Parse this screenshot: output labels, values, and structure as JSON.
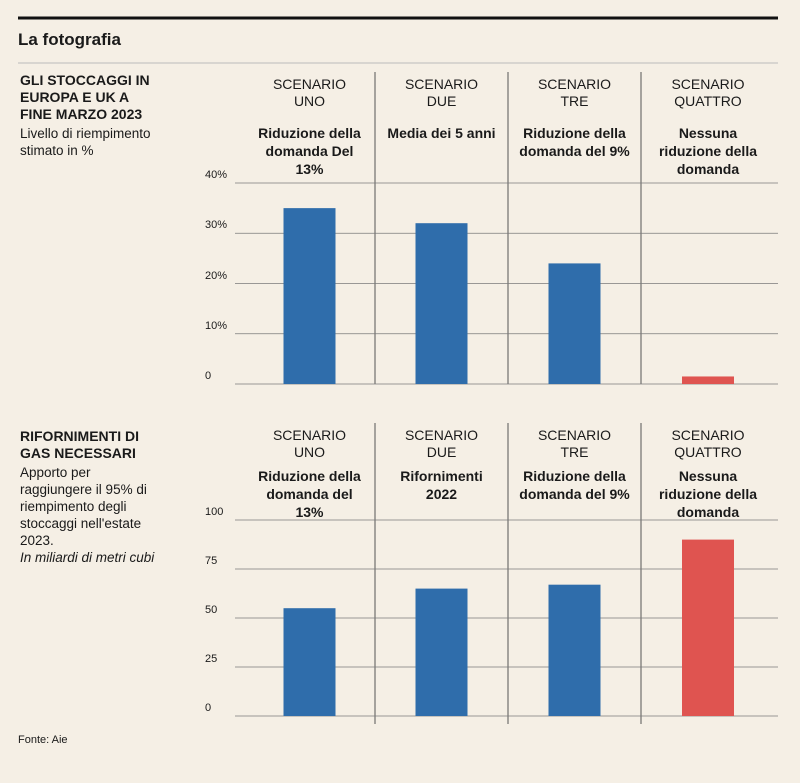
{
  "header": "La fotografia",
  "chart_data": [
    {
      "type": "bar",
      "title": "GLI STOCCAGGI IN EUROPA E UK A FINE MARZO 2023",
      "subtitle": "Livello di riempimento stimato in %",
      "categories": [
        "SCENARIO UNO",
        "SCENARIO DUE",
        "SCENARIO TRE",
        "SCENARIO QUATTRO"
      ],
      "category_descriptions": [
        "Riduzione della domanda Del 13%",
        "Media dei 5 anni",
        "Riduzione della domanda del 9%",
        "Nessuna riduzione della domanda"
      ],
      "values": [
        35,
        32,
        24,
        1.5
      ],
      "colors": [
        "#2f6dab",
        "#2f6dab",
        "#2f6dab",
        "#df5450"
      ],
      "ylim": [
        0,
        40
      ],
      "yticks": [
        0,
        {
          "value": 10,
          "label": "10%"
        },
        {
          "value": 20,
          "label": "20%"
        },
        {
          "value": 30,
          "label": "30%"
        },
        {
          "value": 40,
          "label": "40%"
        }
      ],
      "grid": true
    },
    {
      "type": "bar",
      "title": "RIFORNIMENTI DI GAS NECESSARI",
      "subtitle": "Apporto per raggiungere il 95% di riempimento degli stoccaggi nell'estate 2023.",
      "note": "In miliardi di metri cubi",
      "categories": [
        "SCENARIO UNO",
        "SCENARIO DUE",
        "SCENARIO TRE",
        "SCENARIO QUATTRO"
      ],
      "category_descriptions": [
        "Riduzione della domanda del 13%",
        "Rifornimenti 2022",
        "Riduzione della domanda del 9%",
        "Nessuna riduzione della domanda"
      ],
      "values": [
        55,
        65,
        67,
        90
      ],
      "colors": [
        "#2f6dab",
        "#2f6dab",
        "#2f6dab",
        "#df5450"
      ],
      "ylim": [
        0,
        100
      ],
      "yticks": [
        0,
        25,
        50,
        75,
        100
      ],
      "grid": true
    }
  ],
  "source": "Fonte: Aie"
}
